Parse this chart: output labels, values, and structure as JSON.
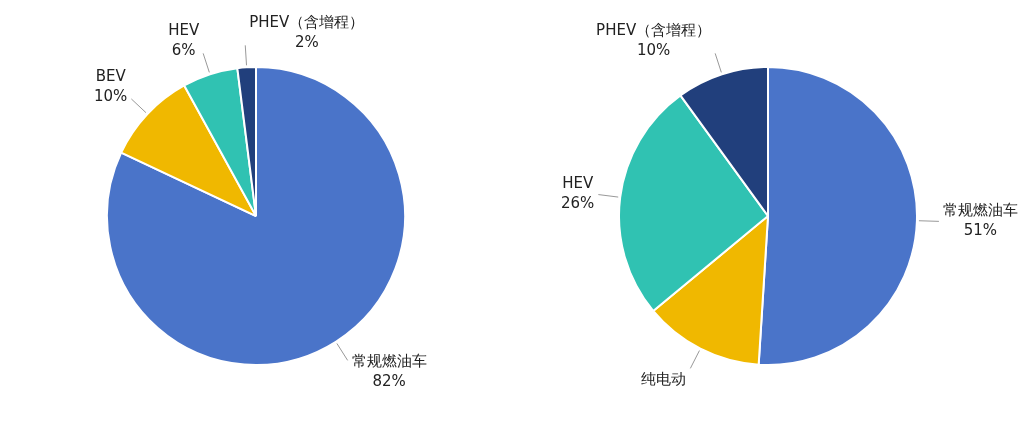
{
  "chart_data": [
    {
      "type": "pie",
      "categories": [
        "常规燃油车",
        "BEV",
        "HEV",
        "PHEV（含增程）"
      ],
      "values": [
        82,
        10,
        6,
        2
      ],
      "value_labels": [
        "82%",
        "10%",
        "6%",
        "2%"
      ],
      "colors": [
        "#4a74c9",
        "#f0b800",
        "#30c2b2",
        "#213f7c"
      ]
    },
    {
      "type": "pie",
      "categories": [
        "常规燃油车",
        "纯电动",
        "HEV",
        "PHEV（含增程）"
      ],
      "values": [
        51,
        13,
        26,
        10
      ],
      "value_labels": [
        "51%",
        null,
        "26%",
        "10%"
      ],
      "colors": [
        "#4a74c9",
        "#f0b800",
        "#30c2b2",
        "#213f7c"
      ]
    }
  ]
}
